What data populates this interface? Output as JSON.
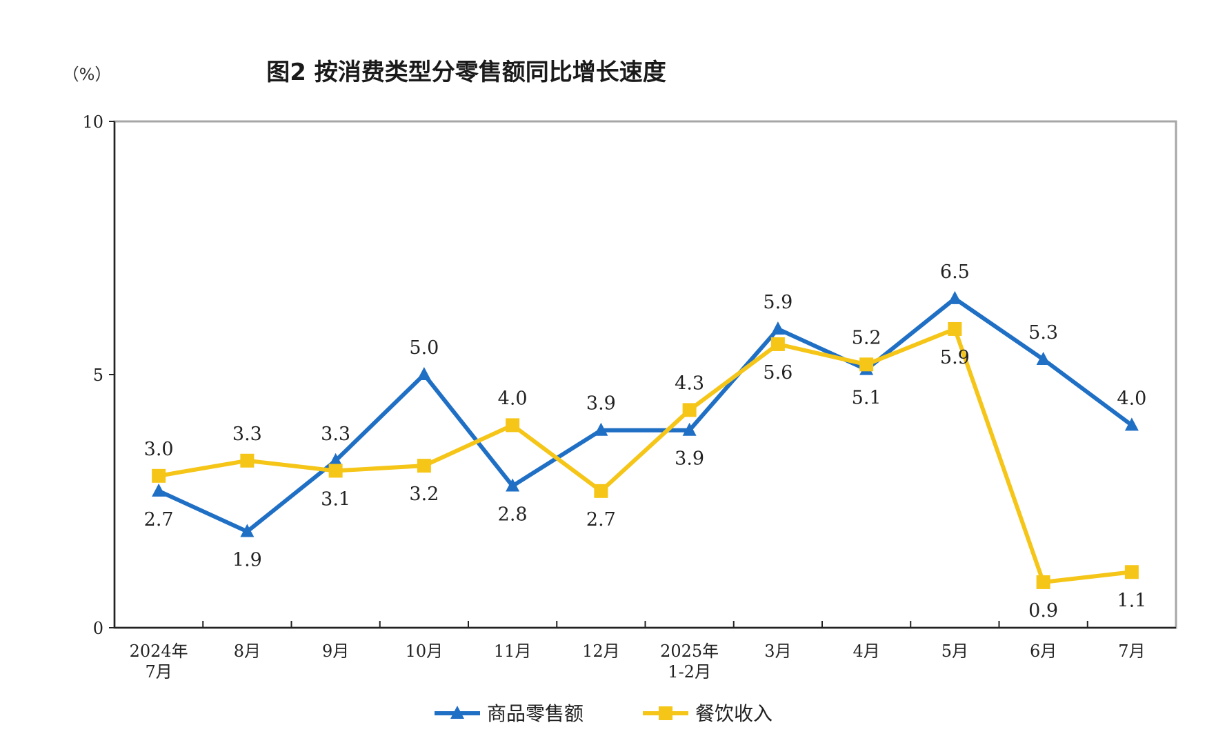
{
  "chart_data": {
    "type": "line",
    "title": "图2  按消费类型分零售额同比增长速度",
    "ylabel": "（%）",
    "ylim": [
      0,
      10
    ],
    "yticks": [
      "0",
      "5",
      "10"
    ],
    "categories": [
      [
        "2024年",
        "7月"
      ],
      [
        "8月"
      ],
      [
        "9月"
      ],
      [
        "10月"
      ],
      [
        "11月"
      ],
      [
        "12月"
      ],
      [
        "2025年",
        "1-2月"
      ],
      [
        "3月"
      ],
      [
        "4月"
      ],
      [
        "5月"
      ],
      [
        "6月"
      ],
      [
        "7月"
      ]
    ],
    "series": [
      {
        "name": "商品零售额",
        "color": "#1f6fc5",
        "marker": "triangle",
        "values": [
          2.7,
          1.9,
          3.3,
          5.0,
          2.8,
          3.9,
          3.9,
          5.9,
          5.1,
          6.5,
          5.3,
          4.0
        ],
        "labels": [
          "2.7",
          "1.9",
          "3.3",
          "5.0",
          "2.8",
          "3.9",
          "3.9",
          "5.9",
          "5.1",
          "6.5",
          "5.3",
          "4.0"
        ],
        "label_side": [
          "below",
          "below",
          "above",
          "above",
          "below",
          "above",
          "below",
          "above",
          "below",
          "above",
          "above",
          "above"
        ]
      },
      {
        "name": "餐饮收入",
        "color": "#f5c518",
        "marker": "square",
        "values": [
          3.0,
          3.3,
          3.1,
          3.2,
          4.0,
          2.7,
          4.3,
          5.6,
          5.2,
          5.9,
          0.9,
          1.1
        ],
        "labels": [
          "3.0",
          "3.3",
          "3.1",
          "3.2",
          "4.0",
          "2.7",
          "4.3",
          "5.6",
          "5.2",
          "5.9",
          "0.9",
          "1.1"
        ],
        "label_side": [
          "above",
          "above",
          "below",
          "below",
          "above",
          "below",
          "above",
          "below",
          "above",
          "below",
          "below",
          "below"
        ]
      }
    ],
    "legend_position": "bottom-center",
    "grid": false
  }
}
